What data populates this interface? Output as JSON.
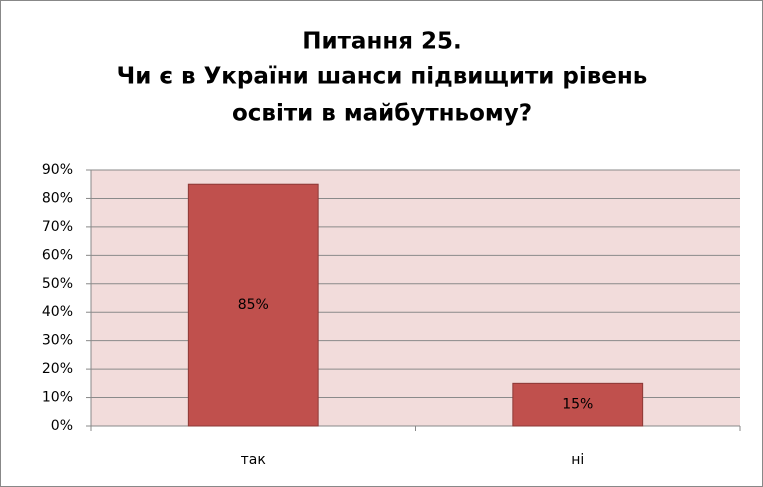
{
  "chart_data": {
    "type": "bar",
    "title": [
      "Питання 25.",
      "Чи є в України шанси підвищити рівень",
      "освіти в майбутньому?"
    ],
    "categories": [
      "так",
      "ні"
    ],
    "values": [
      85,
      15
    ],
    "value_labels": [
      "85%",
      "15%"
    ],
    "color": "#c0504d",
    "ylim": [
      0,
      90
    ],
    "yticks": [
      {
        "value": 0,
        "label": "0%"
      },
      {
        "value": 10,
        "label": "10%"
      },
      {
        "value": 20,
        "label": "20%"
      },
      {
        "value": 30,
        "label": "30%"
      },
      {
        "value": 40,
        "label": "40%"
      },
      {
        "value": 50,
        "label": "50%"
      },
      {
        "value": 60,
        "label": "60%"
      },
      {
        "value": 70,
        "label": "70%"
      },
      {
        "value": 80,
        "label": "80%"
      },
      {
        "value": 90,
        "label": "90%"
      }
    ],
    "grid": true
  }
}
